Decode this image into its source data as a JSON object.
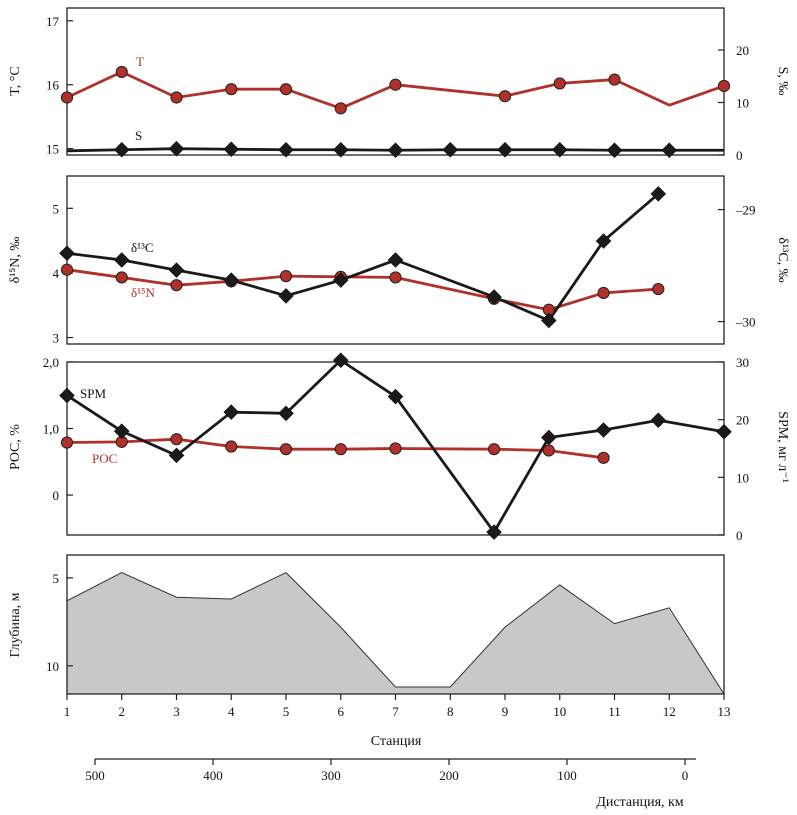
{
  "chart_data": [
    {
      "type": "line",
      "x": [
        1,
        2,
        3,
        4,
        5,
        6,
        7,
        8,
        9,
        10,
        11,
        12,
        13
      ],
      "ylabel_left": "T, °C",
      "ylabel_right": "S, ‰",
      "yticks_left": [
        "15",
        "16",
        "17"
      ],
      "yticks_right": [
        "0",
        "10",
        "20"
      ],
      "ylim_left": [
        14.9,
        17.2
      ],
      "ylim_right": [
        0,
        28
      ],
      "series": [
        {
          "name": "T",
          "axis": "left",
          "color": "#b0302a",
          "marker": "circle",
          "x": [
            1,
            2,
            3,
            4,
            5,
            6,
            7,
            9,
            10,
            11,
            13
          ],
          "values": [
            15.8,
            16.2,
            15.8,
            15.93,
            15.93,
            15.63,
            16.0,
            15.82,
            16.02,
            16.08,
            15.98
          ],
          "line_x": [
            1,
            2,
            3,
            4,
            5,
            6,
            7,
            9,
            10,
            11,
            12,
            13
          ],
          "line_values": [
            15.8,
            16.2,
            15.8,
            15.93,
            15.93,
            15.63,
            16.0,
            15.82,
            16.02,
            16.08,
            15.68,
            15.98
          ]
        },
        {
          "name": "S",
          "axis": "right",
          "color": "#1a1a1a",
          "marker": "diamond",
          "x": [
            2,
            3,
            4,
            5,
            6,
            7,
            8,
            9,
            10,
            11,
            12
          ],
          "values": [
            1.0,
            1.2,
            1.1,
            1.0,
            1.0,
            0.9,
            1.0,
            1.0,
            1.0,
            0.9,
            0.9
          ],
          "line_x": [
            1,
            2,
            3,
            4,
            5,
            6,
            7,
            8,
            9,
            10,
            11,
            12,
            13
          ],
          "line_values": [
            0.8,
            1.0,
            1.2,
            1.1,
            1.0,
            1.0,
            0.9,
            1.0,
            1.0,
            1.0,
            0.9,
            0.9,
            0.9
          ]
        }
      ]
    },
    {
      "type": "line",
      "x": [
        1,
        2,
        3,
        4,
        5,
        6,
        7,
        8,
        9,
        10,
        11,
        12,
        13
      ],
      "ylabel_left": "δ¹⁵N, ‰",
      "ylabel_right": "δ¹³C, ‰",
      "yticks_left": [
        "3",
        "4",
        "5"
      ],
      "yticks_right": [
        "–30",
        "–29"
      ],
      "ylim_left": [
        2.9,
        5.5
      ],
      "ylim_right": [
        -30.2,
        -28.7
      ],
      "series": [
        {
          "name": "δ¹⁵N",
          "axis": "left",
          "color": "#b0302a",
          "marker": "circle",
          "x": [
            1,
            2,
            3,
            4,
            5,
            6,
            7,
            8.8,
            9.8,
            10.8,
            11.8
          ],
          "values": [
            4.05,
            3.93,
            3.81,
            3.87,
            3.95,
            3.94,
            3.93,
            3.6,
            3.43,
            3.69,
            3.75
          ]
        },
        {
          "name": "δ¹³C",
          "axis": "right",
          "color": "#1a1a1a",
          "marker": "diamond",
          "x": [
            1,
            2,
            3,
            4,
            5,
            6,
            7,
            8.8,
            9.8,
            10.8,
            11.8
          ],
          "values": [
            -29.39,
            -29.45,
            -29.54,
            -29.63,
            -29.77,
            -29.63,
            -29.45,
            -29.78,
            -29.99,
            -29.28,
            -28.86
          ]
        }
      ]
    },
    {
      "type": "line",
      "x": [
        1,
        2,
        3,
        4,
        5,
        6,
        7,
        8,
        9,
        10,
        11,
        12,
        13
      ],
      "ylabel_left": "POC, %",
      "ylabel_right": "SPM, мг л⁻¹",
      "yticks_left": [
        "0",
        "1,0",
        "2,0"
      ],
      "yticks_right": [
        "0",
        "10",
        "20",
        "30"
      ],
      "ylim_left": [
        -0.6,
        2.0
      ],
      "ylim_right": [
        0,
        30
      ],
      "series": [
        {
          "name": "POC",
          "axis": "left",
          "color": "#b0302a",
          "marker": "circle",
          "x": [
            1,
            2,
            3,
            4,
            5,
            6,
            7,
            8.8,
            9.8,
            10.8
          ],
          "values": [
            0.79,
            0.8,
            0.84,
            0.73,
            0.69,
            0.69,
            0.7,
            0.69,
            0.67,
            0.56
          ]
        },
        {
          "name": "SPM",
          "axis": "right",
          "color": "#1a1a1a",
          "marker": "diamond",
          "x": [
            1,
            2,
            3,
            4,
            5,
            6,
            7,
            8.8,
            9.8,
            10.8,
            11.8,
            13
          ],
          "values": [
            24.2,
            18.0,
            13.8,
            21.3,
            21.1,
            30.3,
            24.0,
            0.5,
            16.9,
            18.2,
            19.9,
            17.9
          ]
        }
      ]
    },
    {
      "type": "area",
      "x": [
        1,
        2,
        3,
        4,
        5,
        6,
        7,
        8,
        9,
        10,
        11,
        12,
        13
      ],
      "xlabel": "Станция",
      "ylabel": "Глубина, м",
      "yticks": [
        "5",
        "10"
      ],
      "ylim": [
        11.6,
        3.7
      ],
      "series": [
        {
          "name": "depth",
          "color": "#c8c8c8",
          "x": [
            1,
            2,
            3,
            4,
            5,
            6,
            7,
            8,
            9,
            10,
            11,
            12,
            13
          ],
          "values": [
            6.3,
            4.7,
            6.1,
            6.2,
            4.7,
            7.8,
            11.2,
            11.2,
            7.8,
            5.4,
            7.6,
            6.7,
            11.6
          ]
        }
      ]
    }
  ],
  "x_axis": {
    "label": "Станция",
    "ticks": [
      "1",
      "2",
      "3",
      "4",
      "5",
      "6",
      "7",
      "8",
      "9",
      "10",
      "11",
      "12",
      "13"
    ]
  },
  "distance_axis": {
    "label": "Дистанция, км",
    "ticks": [
      "500",
      "400",
      "300",
      "200",
      "100",
      "0"
    ],
    "values": [
      500,
      400,
      300,
      200,
      100,
      0
    ]
  },
  "colors": {
    "red": "#b0302a",
    "black": "#1a1a1a",
    "fill": "#c8c8c8"
  },
  "labels": {
    "T": "T",
    "S": "S",
    "d13C": "δ¹³C",
    "d15N": "δ¹⁵N",
    "SPM": "SPM",
    "POC": "POC"
  }
}
